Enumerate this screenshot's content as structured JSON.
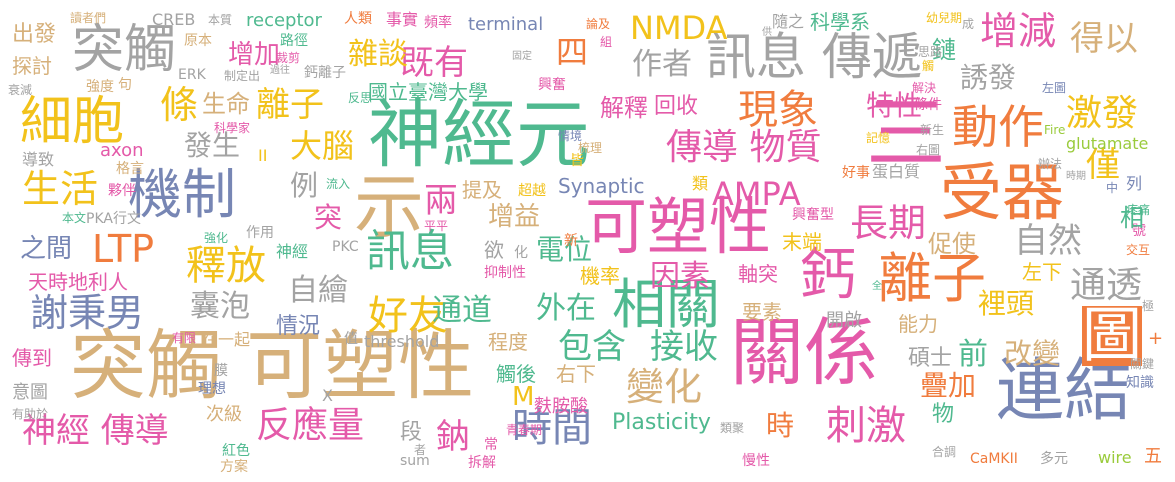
{
  "palette": {
    "green": "#4fb98f",
    "yellow": "#f2c21b",
    "orange": "#f07c3e",
    "blue": "#7786b4",
    "pink": "#e45aa9",
    "gray": "#a3a3a3",
    "tan": "#d6b07a",
    "lime": "#9acb3c"
  },
  "words": {
    "w_shenjingyuan": "神經元",
    "w_guanxi": "關係",
    "w_tuchu_kesuxing": "突觸 可塑性",
    "w_kesuxing": "可塑性",
    "w_lianjie": "連結",
    "w_shouqi": "受器",
    "w_jizhi": "機制",
    "w_xunxi_chuandi": "訊息 傳遞",
    "w_shi": "示",
    "w_san": "三",
    "w_xiangguan": "相關",
    "w_tu": "圖",
    "w_lizi": "離子",
    "w_gai": "鈣",
    "w_tuchu_top": "突觸",
    "w_xibao": "細胞",
    "w_dongzuo": "動作",
    "w_xianxiang": "現象",
    "w_ampa": "AMPA",
    "w_nmda": "NMDA",
    "w_ltp": "LTP",
    "w_shengji": "生活",
    "w_xunxi": "訊息",
    "w_shifang": "釋放",
    "w_xiebingnan": "謝秉男",
    "w_haoyou": "好友",
    "w_shijian": "時間",
    "w_fanyingliang": "反應量",
    "w_shenjing_chuandao": "神經 傳導",
    "w_bianhua": "變化",
    "w_ciji": "刺激",
    "w_zengjian": "增減",
    "w_chuandao_wuzhi": "傳導 物質",
    "w_changqi": "長期",
    "w_jihuo": "激發",
    "w_tongtou": "通透",
    "w_jiyou": "既有",
    "w_zazhan": "雜談",
    "w_lizi2": "離子",
    "w_dana": "大腦",
    "w_si": "四",
    "w_deyi": "得以",
    "w_youfa": "誘發",
    "w_jin": "僅",
    "w_texing": "特性",
    "w_jieshi": "解釋",
    "w_huishou": "回收",
    "w_zuozhe": "作者",
    "w_shengming": "生命",
    "w_fasheng": "發生",
    "w_zengjia": "增加",
    "w_tiao": "條",
    "w_guolitaiwan": "國立臺灣大學",
    "w_synaptic": "Synaptic",
    "w_tiji": "提及",
    "w_chaoyue": "超越",
    "w_liang": "兩",
    "w_zengyi": "增益",
    "w_li": "例",
    "w_tu2": "突",
    "w_dianwei": "電位",
    "w_zhijian": "之間",
    "w_tianshi": "天時地利人",
    "w_nangpao": "囊泡",
    "w_zihui": "自繪",
    "w_qingkuang": "情況",
    "w_tongdao": "通道",
    "w_waizai": "外在",
    "w_jilv": "機率",
    "w_yinsu": "因素",
    "w_zhouci": "軸突",
    "w_ziran": "自然",
    "w_cushi": "促使",
    "w_moduan": "末端",
    "w_zuoxia": "左下",
    "w_limian": "裡頭",
    "w_nengli": "能力",
    "w_kaiqi": "開啟",
    "w_yaosu": "要素",
    "w_qian": "前",
    "w_gaibian": "改變",
    "w_shuoshi": "碩士",
    "w_diejia": "疊加",
    "w_jieshou": "接收",
    "w_baohan": "包含",
    "w_chengdu": "程度",
    "w_youxia": "右下",
    "w_chuhou": "觸後",
    "w_m": "M",
    "w_fuanshuan": "麩胺酸",
    "w_shi2": "時",
    "w_na": "鈉",
    "w_plasticity": "Plasticity",
    "w_shenjing": "神經",
    "w_chuandao2": "傳導",
    "w_chuandao3": "傳到",
    "w_yitu": "意圖",
    "w_youzhuyu": "有助於",
    "w_chufa": "出發",
    "w_tantao": "探討",
    "w_qiangdu": "強度",
    "w_ju": "句",
    "w_shuaijian": "衰減",
    "w_daozhi": "導致",
    "w_axon": "axon",
    "w_geyan": "格言",
    "w_huoban": "夥伴",
    "w_benwen": "本文",
    "w_pka": "PKA行文",
    "w_qianghua": "強化",
    "w_zuoyong": "作用",
    "w_pkc": "PKC",
    "w_pingping": "平平",
    "w_yizhixing": "抑制性",
    "w_yuzhi": "欲",
    "w_xin": "新",
    "w_hua": "化",
    "w_liuru": "流入",
    "w_shenjing2": "神經",
    "w_ii": "II",
    "w_kexuejia": "科學家",
    "w_fanzhi": "反思",
    "w_qingjing": "情境",
    "w_shuli": "梳理",
    "w_jie": "皆",
    "w_lei": "類",
    "w_receptor": "receptor",
    "w_renlei": "人類",
    "w_shishi": "事實",
    "w_pinlv": "頻率",
    "w_terminal": "terminal",
    "w_kexuexi": "科學系",
    "w_lunji": "論及",
    "w_zu": "組",
    "w_suizhi": "隨之",
    "w_youer": "幼兒期",
    "w_cheng": "成",
    "w_gong": "供",
    "w_silu": "思路",
    "w_chu": "觸",
    "w_zuotu": "左圖",
    "w_jiejue": "解決",
    "w_tiaojian": "條件",
    "w_xinsheng": "新生",
    "w_jiyi": "記憶",
    "w_youtu": "右圖",
    "w_banfa": "辦法",
    "w_haoshi": "好事",
    "w_danbaizhi": "蛋白質",
    "w_glutamate": "glutamate",
    "w_fire": "Fire",
    "w_shiqi": "時期",
    "w_zhong": "中",
    "w_lie": "列",
    "w_xingfenxing": "興奮型",
    "w_tengtong": "疼痛",
    "w_hao": "號",
    "w_jiaohu": "交互",
    "w_xiang": "相",
    "w_quan": "全",
    "w_ji": "極",
    "w_guanjian": "關鍵",
    "w_zhishi": "知識",
    "w_plus": "+",
    "w_lian": "鏈",
    "w_ziwu": "物",
    "w_hetiao": "合調",
    "w_camkii": "CaMKII",
    "w_duoyuan": "多元",
    "w_wire": "wire",
    "w_wu": "五",
    "w_manxing": "慢性",
    "w_leiju": "類聚",
    "w_qingchun": "青春期",
    "w_chaijie": "拆解",
    "w_chang": "常",
    "w_sum": "sum",
    "w_duan": "段",
    "w_jiyi_zhe": "者",
    "w_hongse": "紅色",
    "w_fangan": "方案",
    "w_cijie": "次級",
    "w_lixiang": "理想",
    "w_mo": "膜",
    "w_youxian": "有限",
    "w_zaiyiqi": "在一起",
    "w_zhi": "值",
    "w_threshold": "threshold",
    "w_x": "X",
    "w_duzhe": "讀者們",
    "w_creb": "CREB",
    "w_benzhi": "本質",
    "w_yuanben": "原本",
    "w_lujing": "路徑",
    "w_erk": "ERK",
    "w_zhiding": "制定出",
    "w_guowang": "過往",
    "w_caijian": "裁剪",
    "w_gailizi": "鈣離子",
    "w_guding": "固定",
    "w_xingfen": "興奮"
  }
}
